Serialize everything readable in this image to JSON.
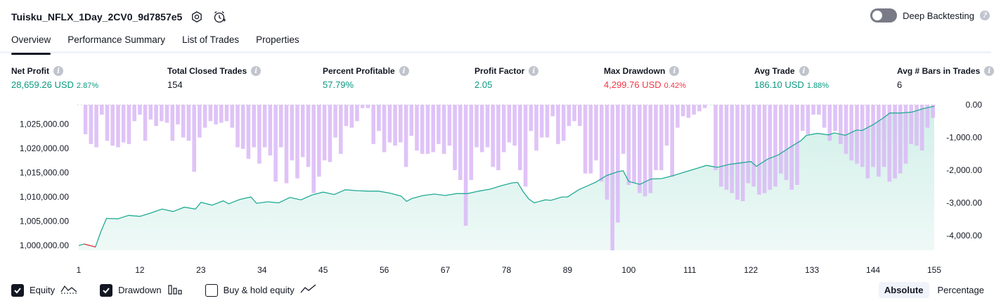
{
  "header": {
    "title": "Tuisku_NFLX_1Day_2CV0_9d7857e5"
  },
  "deep_backtesting": {
    "label": "Deep Backtesting",
    "enabled": false
  },
  "tabs": [
    {
      "label": "Overview",
      "active": true
    },
    {
      "label": "Performance Summary",
      "active": false
    },
    {
      "label": "List of Trades",
      "active": false
    },
    {
      "label": "Properties",
      "active": false
    }
  ],
  "metrics": [
    {
      "label": "Net Profit",
      "value": "28,659.26 USD",
      "pct": "2.87%",
      "color": "green"
    },
    {
      "label": "Total Closed Trades",
      "value": "154",
      "pct": "",
      "color": "dark"
    },
    {
      "label": "Percent Profitable",
      "value": "57.79%",
      "pct": "",
      "color": "green"
    },
    {
      "label": "Profit Factor",
      "value": "2.05",
      "pct": "",
      "color": "green"
    },
    {
      "label": "Max Drawdown",
      "value": "4,299.76 USD",
      "pct": "0.42%",
      "color": "red"
    },
    {
      "label": "Avg Trade",
      "value": "186.10 USD",
      "pct": "1.88%",
      "color": "green"
    },
    {
      "label": "Avg # Bars in Trades",
      "value": "6",
      "pct": "",
      "color": "dark"
    }
  ],
  "colors": {
    "equity_line": "#22ab94",
    "equity_fill": "#d1efe8",
    "drawdown_bar": "#d9b8f6",
    "equity_down": "#f23645",
    "accent": "#131722"
  },
  "chart_data": {
    "type": "area",
    "left_axis": {
      "ticks": [
        1000000,
        1005000,
        1010000,
        1015000,
        1020000,
        1025000
      ],
      "tick_labels": [
        "1,000,000.00",
        "1,005,000.00",
        "1,010,000.00",
        "1,015,000.00",
        "1,020,000.00",
        "1,025,000.00"
      ],
      "ylim": [
        999000,
        1029000
      ]
    },
    "right_axis": {
      "ticks": [
        0,
        -1000,
        -2000,
        -3000,
        -4000
      ],
      "tick_labels": [
        "0.00",
        "-1,000.00",
        "-2,000.00",
        "-3,000.00",
        "-4,000.00"
      ],
      "ylim": [
        -4450,
        0
      ]
    },
    "x_ticks": [
      1,
      12,
      23,
      34,
      45,
      56,
      67,
      78,
      89,
      100,
      111,
      122,
      133,
      144,
      155
    ],
    "x_range": [
      1,
      155
    ],
    "series": [
      {
        "name": "Equity",
        "kind": "line",
        "points": [
          [
            1,
            1000000
          ],
          [
            2,
            1000300
          ],
          [
            4,
            999700
          ],
          [
            5,
            1002900
          ],
          [
            6,
            1005600
          ],
          [
            8,
            1005500
          ],
          [
            10,
            1006200
          ],
          [
            12,
            1006000
          ],
          [
            14,
            1006700
          ],
          [
            16,
            1007500
          ],
          [
            18,
            1007000
          ],
          [
            20,
            1007900
          ],
          [
            22,
            1007500
          ],
          [
            23,
            1008900
          ],
          [
            25,
            1008300
          ],
          [
            27,
            1009200
          ],
          [
            28,
            1008600
          ],
          [
            30,
            1009500
          ],
          [
            32,
            1010000
          ],
          [
            33,
            1008700
          ],
          [
            35,
            1009000
          ],
          [
            37,
            1008800
          ],
          [
            39,
            1009900
          ],
          [
            41,
            1009400
          ],
          [
            43,
            1010400
          ],
          [
            45,
            1011000
          ],
          [
            47,
            1010500
          ],
          [
            49,
            1011500
          ],
          [
            51,
            1011300
          ],
          [
            53,
            1011200
          ],
          [
            55,
            1011200
          ],
          [
            57,
            1010800
          ],
          [
            59,
            1010200
          ],
          [
            60,
            1009100
          ],
          [
            61,
            1009700
          ],
          [
            63,
            1010300
          ],
          [
            65,
            1010600
          ],
          [
            67,
            1010300
          ],
          [
            69,
            1010700
          ],
          [
            71,
            1010700
          ],
          [
            73,
            1011200
          ],
          [
            75,
            1011600
          ],
          [
            77,
            1012300
          ],
          [
            79,
            1012900
          ],
          [
            80,
            1013000
          ],
          [
            81,
            1011100
          ],
          [
            82,
            1009600
          ],
          [
            83,
            1008800
          ],
          [
            85,
            1009400
          ],
          [
            86,
            1009300
          ],
          [
            88,
            1010000
          ],
          [
            89,
            1010000
          ],
          [
            91,
            1011500
          ],
          [
            93,
            1012500
          ],
          [
            94,
            1013000
          ],
          [
            96,
            1014400
          ],
          [
            98,
            1015200
          ],
          [
            99,
            1015400
          ],
          [
            100,
            1013200
          ],
          [
            102,
            1012600
          ],
          [
            104,
            1013700
          ],
          [
            106,
            1013800
          ],
          [
            108,
            1014400
          ],
          [
            110,
            1015100
          ],
          [
            112,
            1015800
          ],
          [
            114,
            1016500
          ],
          [
            116,
            1016100
          ],
          [
            118,
            1016700
          ],
          [
            120,
            1017000
          ],
          [
            122,
            1017300
          ],
          [
            123,
            1016300
          ],
          [
            125,
            1017800
          ],
          [
            127,
            1018700
          ],
          [
            129,
            1020200
          ],
          [
            131,
            1021600
          ],
          [
            132,
            1022700
          ],
          [
            134,
            1023100
          ],
          [
            136,
            1022800
          ],
          [
            137,
            1023200
          ],
          [
            139,
            1022700
          ],
          [
            141,
            1023800
          ],
          [
            142,
            1023700
          ],
          [
            144,
            1024900
          ],
          [
            146,
            1026400
          ],
          [
            147,
            1027300
          ],
          [
            149,
            1027300
          ],
          [
            151,
            1027500
          ],
          [
            153,
            1028200
          ],
          [
            155,
            1028700
          ]
        ]
      },
      {
        "name": "Drawdown",
        "kind": "bar",
        "values": [
          0,
          -900,
          -1200,
          -1300,
          -300,
          -1100,
          -1250,
          -1300,
          -1150,
          -1200,
          -500,
          -300,
          -1100,
          -450,
          -650,
          -500,
          -550,
          -1100,
          -600,
          -1000,
          -1100,
          -2050,
          -1000,
          -700,
          -500,
          -600,
          -550,
          -500,
          -700,
          -1300,
          -1350,
          -1650,
          -1300,
          -1800,
          -1300,
          -1550,
          -2350,
          -1300,
          -2400,
          -1700,
          -2250,
          -1600,
          -1900,
          -2700,
          -2200,
          -1700,
          -1750,
          -1000,
          -1500,
          -650,
          -700,
          -500,
          -100,
          -100,
          -1200,
          -800,
          -1450,
          -1150,
          -1250,
          -1150,
          -1900,
          -950,
          -1400,
          -1500,
          -1500,
          -1450,
          -1200,
          -1500,
          -1250,
          -2000,
          -2300,
          -3700,
          -2300,
          -1300,
          -1450,
          -1300,
          -1900,
          -2000,
          -1450,
          -1150,
          -1250,
          -2000,
          -2500,
          -800,
          -1400,
          -1000,
          -1000,
          -350,
          -1200,
          -1100,
          -650,
          -500,
          -650,
          -2100,
          -2100,
          -1700,
          -2350,
          -2900,
          -4450,
          -3600,
          -1500,
          -2450,
          -2400,
          -2700,
          -2800,
          -2700,
          -2000,
          -2000,
          -1250,
          -2200,
          -700,
          -350,
          -400,
          -300,
          -200,
          -100,
          0,
          -2000,
          -2500,
          -2600,
          -2700,
          -2900,
          -2950,
          -2400,
          -2500,
          -2750,
          -2700,
          -2600,
          -2500,
          -2100,
          -2300,
          -2600,
          -2450,
          -800,
          -900,
          -300,
          -300,
          -700,
          -1100,
          -800,
          -1200,
          -1500,
          -1700,
          -1800,
          -1900,
          -2250,
          -1900,
          -2200,
          -1900,
          -2350,
          -2250,
          -2100,
          -1800,
          -1200,
          -1250,
          -1400,
          -700,
          -400
        ],
        "values_note_ignored": false
      }
    ]
  },
  "legend": [
    {
      "label": "Equity",
      "checked": true
    },
    {
      "label": "Drawdown",
      "checked": true
    },
    {
      "label": "Buy & hold equity",
      "checked": false
    }
  ],
  "modes": [
    {
      "label": "Absolute",
      "active": true
    },
    {
      "label": "Percentage",
      "active": false
    }
  ]
}
